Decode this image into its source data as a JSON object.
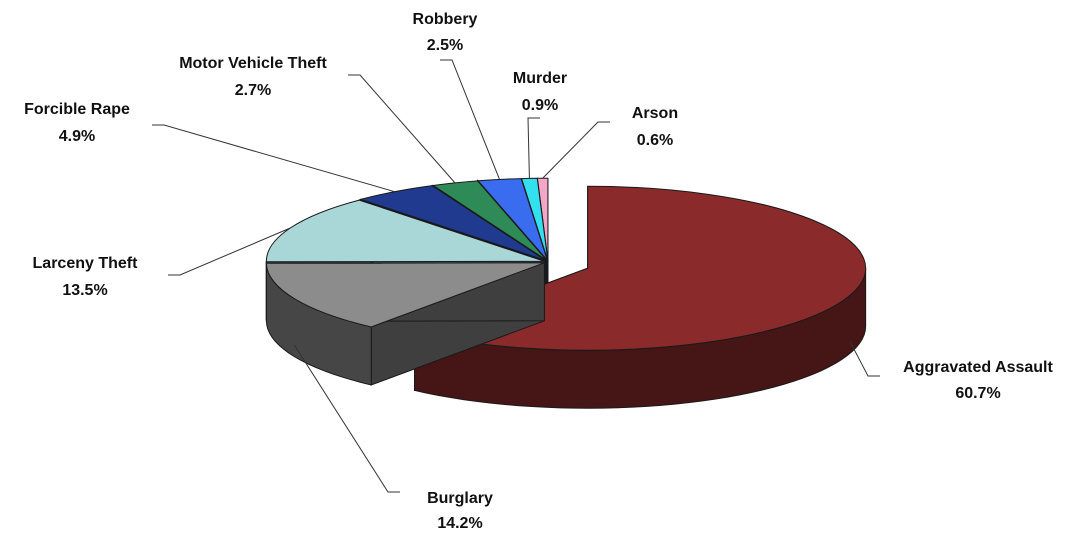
{
  "chart_data": {
    "type": "pie",
    "style": "3d-exploded",
    "legend": "none",
    "slices": [
      {
        "label": "Aggravated Assault",
        "value": 60.7,
        "display": "60.7%",
        "color": "#8b2a2a"
      },
      {
        "label": "Burglary",
        "value": 14.2,
        "display": "14.2%",
        "color": "#8c8c8c"
      },
      {
        "label": "Larceny Theft",
        "value": 13.5,
        "display": "13.5%",
        "color": "#a9d6d6"
      },
      {
        "label": "Forcible Rape",
        "value": 4.9,
        "display": "4.9%",
        "color": "#1f3a8f"
      },
      {
        "label": "Motor Vehicle Theft",
        "value": 2.7,
        "display": "2.7%",
        "color": "#2e8b57"
      },
      {
        "label": "Robbery",
        "value": 2.5,
        "display": "2.5%",
        "color": "#3a6cf0"
      },
      {
        "label": "Murder",
        "value": 0.9,
        "display": "0.9%",
        "color": "#33e0f0"
      },
      {
        "label": "Arson",
        "value": 0.6,
        "display": "0.6%",
        "color": "#f4a6c8"
      }
    ]
  }
}
